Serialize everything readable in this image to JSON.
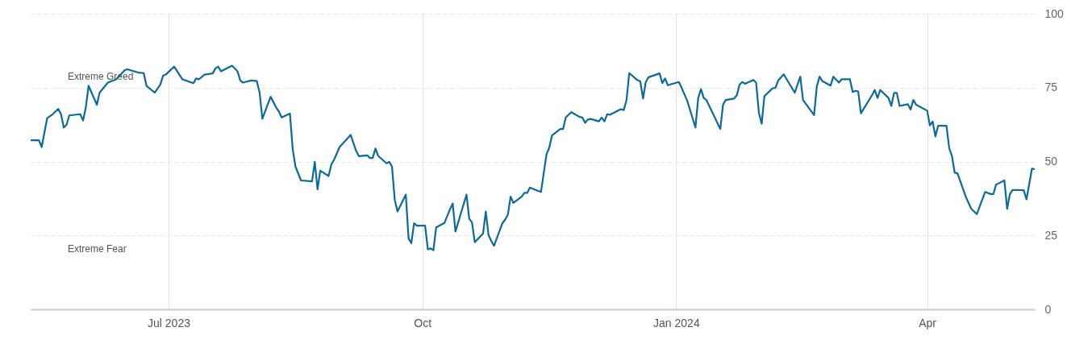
{
  "chart_data": {
    "type": "line",
    "annotations": [
      "Extreme Greed",
      "Extreme Fear"
    ],
    "x": [
      "2023-05-12",
      "2023-05-15",
      "2023-05-16",
      "2023-05-18",
      "2023-05-20",
      "2023-05-22",
      "2023-05-23",
      "2023-05-24",
      "2023-05-25",
      "2023-05-26",
      "2023-05-30",
      "2023-05-31",
      "2023-06-01",
      "2023-06-02",
      "2023-06-05",
      "2023-06-06",
      "2023-06-09",
      "2023-06-12",
      "2023-06-15",
      "2023-06-16",
      "2023-06-20",
      "2023-06-22",
      "2023-06-23",
      "2023-06-26",
      "2023-06-28",
      "2023-06-29",
      "2023-06-30",
      "2023-07-03",
      "2023-07-06",
      "2023-07-10",
      "2023-07-11",
      "2023-07-12",
      "2023-07-14",
      "2023-07-17",
      "2023-07-18",
      "2023-07-19",
      "2023-07-20",
      "2023-07-24",
      "2023-07-26",
      "2023-07-27",
      "2023-07-28",
      "2023-07-31",
      "2023-08-02",
      "2023-08-03",
      "2023-08-04",
      "2023-08-07",
      "2023-08-09",
      "2023-08-10",
      "2023-08-11",
      "2023-08-14",
      "2023-08-15",
      "2023-08-16",
      "2023-08-18",
      "2023-08-22",
      "2023-08-23",
      "2023-08-24",
      "2023-08-25",
      "2023-08-28",
      "2023-08-29",
      "2023-08-30",
      "2023-09-01",
      "2023-09-05",
      "2023-09-07",
      "2023-09-08",
      "2023-09-11",
      "2023-09-12",
      "2023-09-13",
      "2023-09-14",
      "2023-09-15",
      "2023-09-18",
      "2023-09-19",
      "2023-09-20",
      "2023-09-21",
      "2023-09-22",
      "2023-09-25",
      "2023-09-26",
      "2023-09-27",
      "2023-09-28",
      "2023-09-29",
      "2023-10-02",
      "2023-10-03",
      "2023-10-04",
      "2023-10-05",
      "2023-10-06",
      "2023-10-09",
      "2023-10-11",
      "2023-10-12",
      "2023-10-13",
      "2023-10-17",
      "2023-10-18",
      "2023-10-19",
      "2023-10-20",
      "2023-10-23",
      "2023-10-24",
      "2023-10-25",
      "2023-10-26",
      "2023-10-27",
      "2023-10-30",
      "2023-10-31",
      "2023-11-01",
      "2023-11-02",
      "2023-11-03",
      "2023-11-06",
      "2023-11-07",
      "2023-11-08",
      "2023-11-09",
      "2023-11-11",
      "2023-11-13",
      "2023-11-15",
      "2023-11-16",
      "2023-11-17",
      "2023-11-20",
      "2023-11-21",
      "2023-11-22",
      "2023-11-24",
      "2023-11-27",
      "2023-11-28",
      "2023-11-29",
      "2023-11-30",
      "2023-12-01",
      "2023-12-04",
      "2023-12-05",
      "2023-12-06",
      "2023-12-07",
      "2023-12-08",
      "2023-12-12",
      "2023-12-13",
      "2023-12-14",
      "2023-12-15",
      "2023-12-18",
      "2023-12-19",
      "2023-12-20",
      "2023-12-21",
      "2023-12-22",
      "2023-12-26",
      "2023-12-27",
      "2023-12-28",
      "2023-12-29",
      "2024-01-02",
      "2024-01-03",
      "2024-01-05",
      "2024-01-08",
      "2024-01-09",
      "2024-01-10",
      "2024-01-11",
      "2024-01-12",
      "2024-01-17",
      "2024-01-18",
      "2024-01-19",
      "2024-01-22",
      "2024-01-23",
      "2024-01-24",
      "2024-01-25",
      "2024-01-26",
      "2024-01-29",
      "2024-01-30",
      "2024-01-31",
      "2024-02-01",
      "2024-02-02",
      "2024-02-05",
      "2024-02-06",
      "2024-02-07",
      "2024-02-09",
      "2024-02-13",
      "2024-02-15",
      "2024-02-16",
      "2024-02-20",
      "2024-02-21",
      "2024-02-22",
      "2024-02-23",
      "2024-02-26",
      "2024-02-27",
      "2024-02-29",
      "2024-03-01",
      "2024-03-04",
      "2024-03-05",
      "2024-03-06",
      "2024-03-07",
      "2024-03-08",
      "2024-03-12",
      "2024-03-13",
      "2024-03-14",
      "2024-03-15",
      "2024-03-18",
      "2024-03-19",
      "2024-03-20",
      "2024-03-21",
      "2024-03-22",
      "2024-03-25",
      "2024-03-26",
      "2024-03-27",
      "2024-03-28",
      "2024-04-01",
      "2024-04-02",
      "2024-04-03",
      "2024-04-04",
      "2024-04-05",
      "2024-04-08",
      "2024-04-09",
      "2024-04-10",
      "2024-04-11",
      "2024-04-12",
      "2024-04-15",
      "2024-04-17",
      "2024-04-19",
      "2024-04-22",
      "2024-04-24",
      "2024-04-25",
      "2024-04-26",
      "2024-04-29",
      "2024-04-30",
      "2024-05-01",
      "2024-05-02",
      "2024-05-06",
      "2024-05-07",
      "2024-05-09",
      "2024-05-10"
    ],
    "series": [
      {
        "color": "#0b6a9b",
        "values": [
          57.2,
          57.2,
          54.9,
          64.7,
          66,
          67.8,
          66,
          61.5,
          62.4,
          65.6,
          66,
          63.9,
          68.3,
          75.6,
          69.2,
          73.3,
          76.7,
          77.8,
          80.8,
          81.2,
          80.1,
          79.9,
          75.6,
          73.3,
          76,
          79,
          79.4,
          82.1,
          77.8,
          76.5,
          78.1,
          77.8,
          79.4,
          79.8,
          81.5,
          82.1,
          80.5,
          82.4,
          80.5,
          77.4,
          76.7,
          77.4,
          77.2,
          73.3,
          64.5,
          71.9,
          68.3,
          66.9,
          64.9,
          66.2,
          54.2,
          48.3,
          43.6,
          43.3,
          49.9,
          40.6,
          46.9,
          45.1,
          49,
          50.6,
          54.9,
          59,
          53.6,
          51.8,
          52.1,
          51.2,
          51.2,
          54.4,
          51.9,
          49.4,
          49.9,
          48.3,
          37,
          33.1,
          38.8,
          24,
          22.4,
          29.1,
          28.3,
          28.3,
          20.3,
          20.6,
          20,
          27.7,
          29.2,
          33.8,
          35.8,
          26.3,
          38.8,
          30.6,
          29.4,
          22.7,
          25.6,
          33.1,
          25.1,
          23.1,
          21.5,
          29.1,
          30.3,
          32,
          38.1,
          36,
          38.1,
          39.4,
          39.4,
          41.2,
          40.4,
          39.7,
          52.4,
          54.7,
          58.8,
          61,
          61,
          64.9,
          66.7,
          65.1,
          64.9,
          63.1,
          64.2,
          64.4,
          63.6,
          64.9,
          63.6,
          66,
          65.8,
          67.7,
          67.4,
          70.7,
          79.9,
          77.5,
          77.1,
          71.3,
          76.9,
          78.5,
          79.8,
          76.5,
          78.1,
          75.8,
          76.9,
          74.9,
          70.6,
          61.5,
          71.5,
          74.5,
          71.5,
          70.8,
          61,
          69.2,
          70.8,
          71.3,
          72.4,
          76,
          76.9,
          76.3,
          77.6,
          76.7,
          66.5,
          62.8,
          72.1,
          74.8,
          74.9,
          77.4,
          79.5,
          73.3,
          78.7,
          70.8,
          65.7,
          75.4,
          78.7,
          77.2,
          75.7,
          78.7,
          76.7,
          77.8,
          77.8,
          73.5,
          73.9,
          73.7,
          66.3,
          72.4,
          74.2,
          71.5,
          74.2,
          71.5,
          68.8,
          73.2,
          73.2,
          68.8,
          69.4,
          67.6,
          70.8,
          69.2,
          67.2,
          62.2,
          63.5,
          58.5,
          62.1,
          62.1,
          54.5,
          51.8,
          46.2,
          46,
          38.1,
          34,
          32.2,
          39.7,
          39,
          39,
          42.2,
          43.6,
          34,
          39,
          40.4,
          40.3,
          37.2,
          47.6,
          47.4
        ]
      }
    ],
    "xlim": [
      "2023-05-12",
      "2024-05-10"
    ],
    "xticks": [
      {
        "value": "2023-07-01",
        "label": "Jul 2023"
      },
      {
        "value": "2023-10-01",
        "label": "Oct"
      },
      {
        "value": "2024-01-01",
        "label": "Jan 2024"
      },
      {
        "value": "2024-04-01",
        "label": "Apr"
      }
    ],
    "ylim": [
      0,
      100
    ],
    "yticks": [
      0,
      25,
      50,
      75,
      100
    ],
    "grid": true,
    "marker": "none",
    "line_style": "solid"
  }
}
